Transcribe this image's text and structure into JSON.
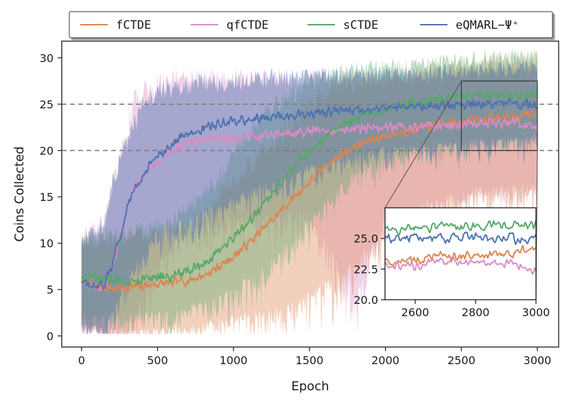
{
  "chart_data": {
    "type": "line",
    "title": "",
    "xlabel": "Epoch",
    "ylabel": "Coins Collected",
    "xlim": [
      -130,
      3140
    ],
    "ylim": [
      -1.2,
      31.8
    ],
    "xticks": [
      0,
      500,
      1000,
      1500,
      2000,
      2500,
      3000
    ],
    "yticks": [
      0,
      5,
      10,
      15,
      20,
      25,
      30
    ],
    "reference_lines_y": [
      20,
      25
    ],
    "legend_position": "top",
    "series": [
      {
        "name": "fCTDE",
        "color": "#dd8452",
        "mean": [
          [
            0,
            6.0
          ],
          [
            100,
            5.4
          ],
          [
            200,
            5.1
          ],
          [
            300,
            5.2
          ],
          [
            400,
            5.4
          ],
          [
            500,
            5.6
          ],
          [
            600,
            5.7
          ],
          [
            700,
            6.0
          ],
          [
            800,
            6.5
          ],
          [
            900,
            7.4
          ],
          [
            1000,
            8.6
          ],
          [
            1100,
            10.0
          ],
          [
            1200,
            11.6
          ],
          [
            1300,
            13.3
          ],
          [
            1400,
            15.0
          ],
          [
            1500,
            16.6
          ],
          [
            1600,
            18.2
          ],
          [
            1700,
            19.5
          ],
          [
            1800,
            20.4
          ],
          [
            1900,
            21.1
          ],
          [
            2000,
            21.6
          ],
          [
            2100,
            22.0
          ],
          [
            2200,
            22.3
          ],
          [
            2300,
            22.6
          ],
          [
            2400,
            22.9
          ],
          [
            2500,
            23.1
          ],
          [
            2600,
            23.3
          ],
          [
            2700,
            23.5
          ],
          [
            2800,
            23.6
          ],
          [
            2900,
            23.7
          ],
          [
            3000,
            24.3
          ]
        ],
        "band": [
          [
            0,
            1.6,
            10.0
          ],
          [
            200,
            0.9,
            10.6
          ],
          [
            400,
            0.8,
            11.0
          ],
          [
            700,
            1.3,
            11.8
          ],
          [
            1000,
            2.2,
            16.5
          ],
          [
            1300,
            3.3,
            21.5
          ],
          [
            1500,
            4.8,
            25.0
          ],
          [
            1700,
            6.8,
            27.2
          ],
          [
            2000,
            11.5,
            27.8
          ],
          [
            2300,
            14.5,
            28.6
          ],
          [
            2600,
            15.5,
            29.4
          ],
          [
            3000,
            16.0,
            29.8
          ]
        ]
      },
      {
        "name": "qfCTDE",
        "color": "#da8bc3",
        "mean": [
          [
            0,
            5.8
          ],
          [
            100,
            5.2
          ],
          [
            150,
            5.4
          ],
          [
            200,
            7.0
          ],
          [
            250,
            10.5
          ],
          [
            300,
            14.0
          ],
          [
            350,
            16.0
          ],
          [
            400,
            17.3
          ],
          [
            500,
            18.8
          ],
          [
            600,
            20.0
          ],
          [
            700,
            20.8
          ],
          [
            800,
            21.1
          ],
          [
            900,
            21.2
          ],
          [
            1000,
            21.3
          ],
          [
            1200,
            21.6
          ],
          [
            1500,
            22.0
          ],
          [
            2000,
            22.5
          ],
          [
            2500,
            22.8
          ],
          [
            2700,
            23.0
          ],
          [
            2900,
            23.0
          ],
          [
            3000,
            22.4
          ]
        ],
        "band": [
          [
            0,
            1.4,
            10.5
          ],
          [
            150,
            0.5,
            12.5
          ],
          [
            250,
            1.0,
            19.0
          ],
          [
            350,
            3.0,
            25.5
          ],
          [
            500,
            9.0,
            27.2
          ],
          [
            700,
            12.0,
            27.8
          ],
          [
            1000,
            13.0,
            27.8
          ],
          [
            1500,
            13.5,
            27.8
          ],
          [
            1800,
            5.0,
            27.8
          ],
          [
            2000,
            13.0,
            28.0
          ],
          [
            2500,
            16.0,
            28.5
          ],
          [
            3000,
            16.5,
            29.0
          ]
        ]
      },
      {
        "name": "sCTDE",
        "color": "#55a868",
        "mean": [
          [
            0,
            6.4
          ],
          [
            100,
            6.2
          ],
          [
            200,
            6.0
          ],
          [
            300,
            6.0
          ],
          [
            400,
            6.1
          ],
          [
            500,
            6.2
          ],
          [
            600,
            6.5
          ],
          [
            700,
            7.0
          ],
          [
            800,
            7.8
          ],
          [
            900,
            9.0
          ],
          [
            1000,
            10.5
          ],
          [
            1100,
            12.3
          ],
          [
            1200,
            14.3
          ],
          [
            1300,
            16.3
          ],
          [
            1400,
            18.2
          ],
          [
            1500,
            20.0
          ],
          [
            1600,
            21.4
          ],
          [
            1700,
            22.6
          ],
          [
            1800,
            23.3
          ],
          [
            1900,
            24.0
          ],
          [
            2000,
            24.5
          ],
          [
            2100,
            24.9
          ],
          [
            2200,
            25.2
          ],
          [
            2300,
            25.4
          ],
          [
            2400,
            25.6
          ],
          [
            2500,
            25.7
          ],
          [
            2600,
            25.8
          ],
          [
            2700,
            25.9
          ],
          [
            2800,
            26.0
          ],
          [
            2900,
            26.0
          ],
          [
            3000,
            26.1
          ]
        ],
        "band": [
          [
            0,
            2.5,
            10.5
          ],
          [
            300,
            2.5,
            11.0
          ],
          [
            600,
            2.8,
            12.5
          ],
          [
            900,
            4.5,
            17.0
          ],
          [
            1200,
            7.5,
            24.0
          ],
          [
            1500,
            13.0,
            27.5
          ],
          [
            1800,
            18.0,
            28.6
          ],
          [
            2100,
            20.0,
            29.0
          ],
          [
            2400,
            21.0,
            29.5
          ],
          [
            2700,
            21.5,
            30.0
          ],
          [
            3000,
            22.0,
            30.3
          ]
        ]
      },
      {
        "name": "eQMARL−Ψ⁺",
        "color": "#4c72b0",
        "mean": [
          [
            0,
            5.8
          ],
          [
            100,
            5.0
          ],
          [
            150,
            5.5
          ],
          [
            200,
            7.5
          ],
          [
            250,
            10.8
          ],
          [
            300,
            13.8
          ],
          [
            350,
            15.8
          ],
          [
            400,
            17.3
          ],
          [
            500,
            19.4
          ],
          [
            600,
            20.8
          ],
          [
            700,
            21.8
          ],
          [
            800,
            22.4
          ],
          [
            900,
            22.8
          ],
          [
            1000,
            23.1
          ],
          [
            1200,
            23.5
          ],
          [
            1500,
            24.0
          ],
          [
            2000,
            24.6
          ],
          [
            2500,
            25.0
          ],
          [
            2700,
            25.1
          ],
          [
            2900,
            25.0
          ],
          [
            3000,
            24.9
          ]
        ],
        "band": [
          [
            0,
            1.5,
            10.0
          ],
          [
            150,
            1.0,
            12.0
          ],
          [
            200,
            3.0,
            16.5
          ],
          [
            300,
            6.5,
            21.0
          ],
          [
            400,
            9.0,
            25.0
          ],
          [
            500,
            11.5,
            26.5
          ],
          [
            800,
            13.5,
            27.3
          ],
          [
            1200,
            16.5,
            27.8
          ],
          [
            1500,
            18.5,
            28.0
          ],
          [
            2000,
            20.5,
            28.2
          ],
          [
            2500,
            21.0,
            28.5
          ],
          [
            3000,
            21.5,
            29.0
          ]
        ]
      }
    ],
    "inset": {
      "xlim": [
        2500,
        3000
      ],
      "ylim": [
        20.0,
        27.5
      ],
      "xticks": [
        2600,
        2800,
        3000
      ],
      "yticks": [
        20.0,
        22.5,
        25.0
      ],
      "ytick_labels": [
        "20.0",
        "22.5",
        "25.0"
      ]
    }
  }
}
